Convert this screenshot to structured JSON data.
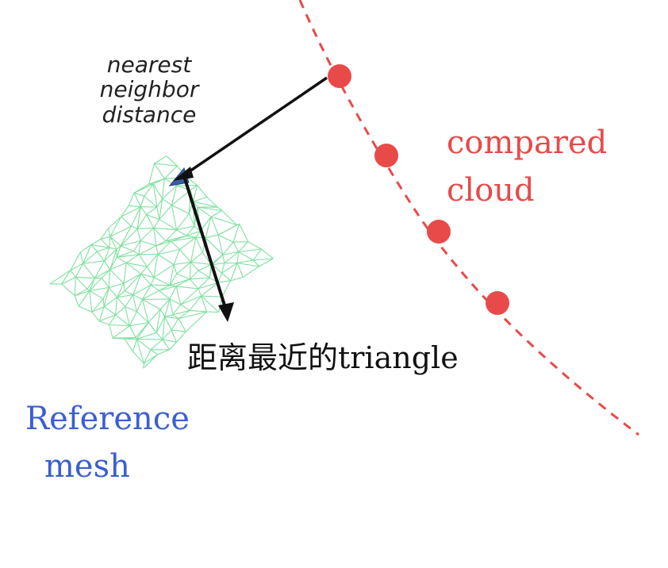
{
  "labels": {
    "nearest_neighbor": [
      "nearest",
      "neighbor",
      "distance"
    ],
    "compared_cloud": [
      "compared",
      "cloud"
    ],
    "nearest_triangle": "距离最近的triangle",
    "reference_mesh": [
      "Reference",
      "mesh"
    ]
  },
  "colors": {
    "compared_cloud": "#e84a4a",
    "reference_mesh_label": "#3b5fcf",
    "mesh_edges": "#7fe0a0",
    "triangle": "#3a5fa8",
    "arrows": "#111111"
  }
}
